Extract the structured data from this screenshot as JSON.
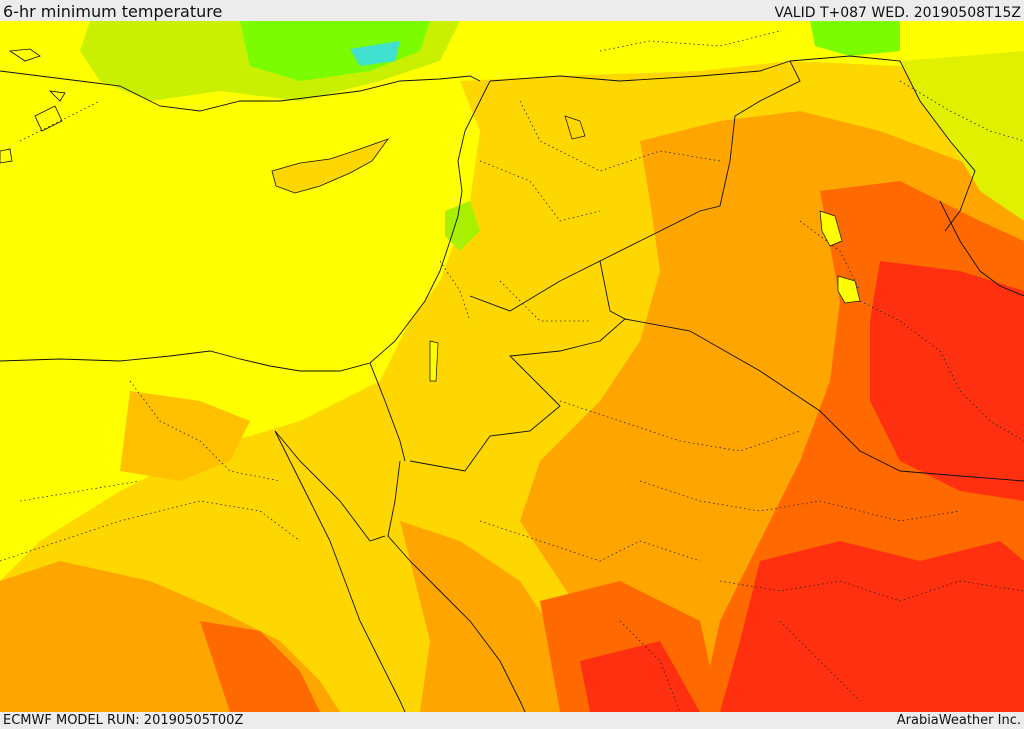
{
  "header": {
    "title": "6-hr minimum temperature",
    "valid": "VALID T+087 WED. 20190508T15Z"
  },
  "footer": {
    "model_run": "ECMWF MODEL RUN: 20190505T00Z",
    "credit": "ArabiaWeather Inc."
  },
  "map": {
    "colors": {
      "sea_yellow": "#ffff00",
      "light_orange": "#ffd700",
      "orange": "#ffa500",
      "dark_orange": "#ff6a00",
      "red_orange": "#ff3010",
      "green": "#7cfc00",
      "cyan": "#40e0d0",
      "yellow_green": "#c8f000"
    }
  }
}
